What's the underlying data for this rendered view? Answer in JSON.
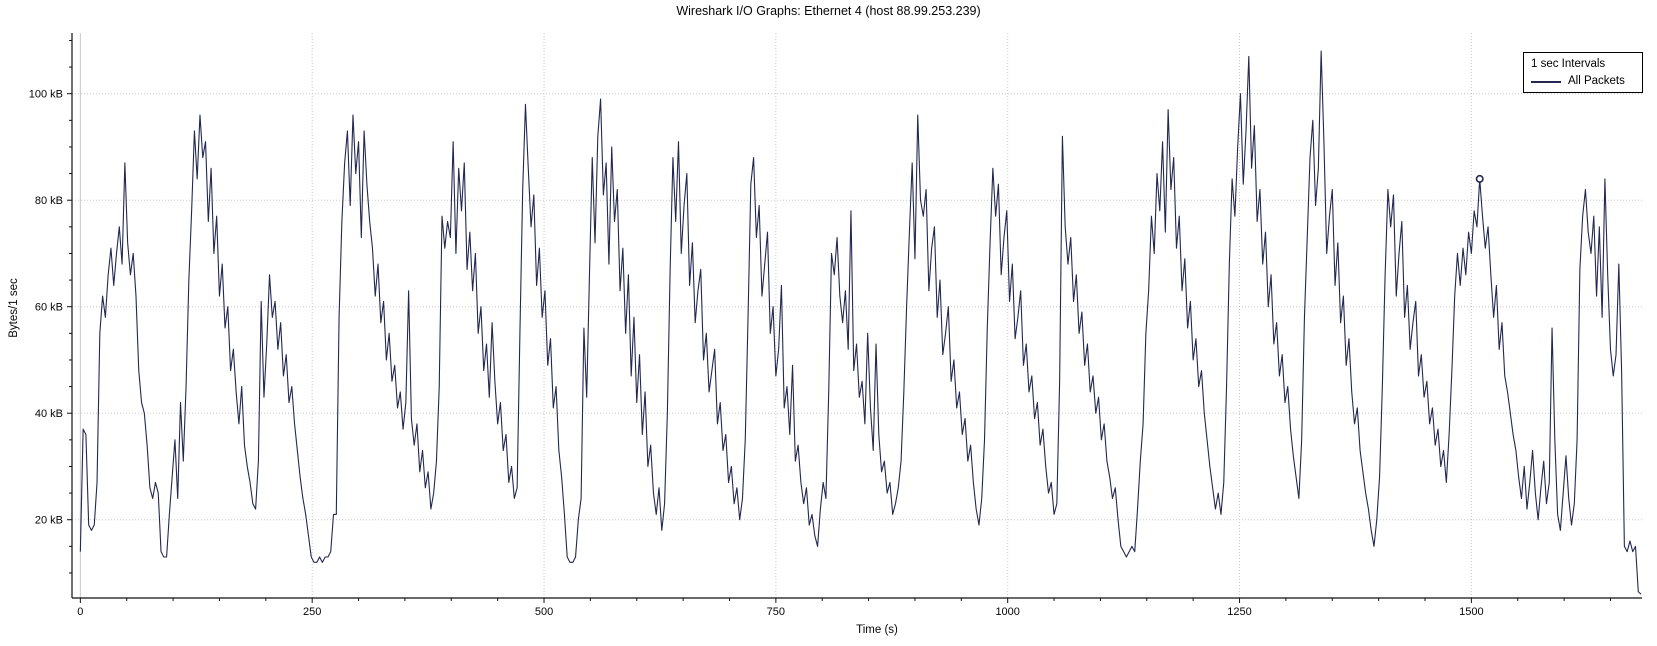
{
  "chart": {
    "title": "Wireshark I/O Graphs: Ethernet 4 (host 88.99.253.239)",
    "xlabel": "Time (s)",
    "ylabel": "Bytes/1 sec"
  },
  "legend": {
    "title": "1 sec Intervals",
    "items": [
      {
        "label": "All Packets",
        "color": "#232850"
      }
    ]
  },
  "colors": {
    "line": "#232850",
    "grid": "#c8c8c8",
    "zero_line": "#c8c8c8",
    "axis": "#111111",
    "text": "#060606",
    "background": "#ffffff",
    "marker_fill": "#ffffff"
  },
  "chart_data": {
    "type": "line",
    "title": "Wireshark I/O Graphs: Ethernet 4 (host 88.99.253.239)",
    "xlabel": "Time (s)",
    "ylabel": "Bytes/1 sec",
    "y_unit": "kB",
    "interval_label": "1 sec Intervals",
    "legend_position": "top-right",
    "grid": "dotted gridlines at major ticks; solid light-gray vertical line at t=0",
    "xlim": [
      -9,
      1684
    ],
    "ylim": [
      5.3,
      111.4
    ],
    "x_ticks": {
      "major": [
        0,
        250,
        500,
        750,
        1000,
        1250,
        1500
      ],
      "labels": [
        "0",
        "250",
        "500",
        "750",
        "1000",
        "1250",
        "1500"
      ],
      "minor_step": 50
    },
    "y_ticks": {
      "major": [
        20,
        40,
        60,
        80,
        100
      ],
      "labels": [
        "20 kB",
        "40 kB",
        "60 kB",
        "80 kB",
        "100 kB"
      ],
      "minor_step": 5
    },
    "hover_marker": {
      "t": 1509,
      "value_kB": 84
    },
    "series": [
      {
        "name": "All Packets",
        "t_start": 0,
        "t_step": 3,
        "values_kB": [
          14,
          37,
          36,
          19,
          18,
          19,
          27,
          55,
          62,
          58,
          66,
          71,
          64,
          70,
          75,
          68,
          87,
          72,
          66,
          70,
          62,
          48,
          42,
          40,
          34,
          26,
          24,
          27,
          25,
          14,
          13,
          13,
          21,
          28,
          35,
          24,
          42,
          31,
          45,
          65,
          78,
          93,
          84,
          96,
          88,
          91,
          76,
          86,
          70,
          77,
          62,
          68,
          56,
          60,
          48,
          52,
          44,
          38,
          45,
          34,
          30,
          27,
          23,
          22,
          31,
          61,
          43,
          53,
          66,
          58,
          61,
          52,
          57,
          47,
          51,
          42,
          45,
          38,
          33,
          28,
          24,
          21,
          17,
          13,
          12,
          12,
          13,
          12,
          13,
          13,
          14,
          21,
          21,
          58,
          76,
          87,
          93,
          79,
          96,
          85,
          91,
          73,
          93,
          83,
          76,
          71,
          62,
          68,
          57,
          61,
          50,
          55,
          46,
          49,
          41,
          44,
          37,
          42,
          63,
          39,
          34,
          38,
          29,
          33,
          26,
          29,
          22,
          25,
          31,
          45,
          77,
          71,
          76,
          73,
          91,
          70,
          86,
          78,
          87,
          67,
          74,
          63,
          70,
          55,
          60,
          48,
          53,
          43,
          57,
          46,
          38,
          42,
          33,
          36,
          27,
          30,
          24,
          26,
          55,
          82,
          98,
          86,
          75,
          81,
          64,
          71,
          58,
          63,
          49,
          54,
          41,
          45,
          33,
          28,
          21,
          13,
          12,
          12,
          13,
          20,
          24,
          56,
          43,
          66,
          88,
          72,
          92,
          99,
          81,
          87,
          68,
          90,
          76,
          82,
          63,
          71,
          55,
          66,
          47,
          58,
          42,
          51,
          36,
          44,
          30,
          34,
          25,
          21,
          26,
          18,
          23,
          40,
          67,
          88,
          76,
          91,
          70,
          79,
          85,
          64,
          72,
          57,
          63,
          67,
          50,
          55,
          44,
          48,
          52,
          38,
          42,
          33,
          36,
          27,
          30,
          23,
          26,
          20,
          24,
          35,
          58,
          83,
          88,
          73,
          79,
          62,
          68,
          74,
          55,
          60,
          47,
          52,
          64,
          41,
          45,
          36,
          49,
          31,
          34,
          27,
          23,
          26,
          19,
          21,
          17,
          15,
          22,
          27,
          24,
          44,
          70,
          66,
          73,
          62,
          57,
          63,
          52,
          78,
          48,
          53,
          43,
          46,
          38,
          55,
          41,
          33,
          53,
          36,
          29,
          31,
          25,
          27,
          21,
          23,
          26,
          31,
          44,
          60,
          74,
          87,
          69,
          96,
          80,
          77,
          82,
          63,
          71,
          75,
          58,
          65,
          51,
          55,
          60,
          46,
          50,
          41,
          44,
          36,
          39,
          31,
          34,
          27,
          22,
          19,
          24,
          35,
          56,
          72,
          86,
          77,
          83,
          66,
          73,
          78,
          61,
          68,
          54,
          58,
          63,
          49,
          53,
          44,
          47,
          39,
          42,
          34,
          37,
          30,
          25,
          27,
          21,
          23,
          46,
          92,
          75,
          68,
          73,
          61,
          66,
          55,
          59,
          49,
          53,
          44,
          47,
          40,
          43,
          35,
          38,
          31,
          28,
          24,
          26,
          20,
          15,
          14,
          13,
          14,
          15,
          14,
          22,
          31,
          38,
          55,
          63,
          77,
          70,
          85,
          78,
          91,
          74,
          97,
          82,
          88,
          71,
          77,
          63,
          69,
          56,
          61,
          50,
          54,
          45,
          48,
          40,
          35,
          30,
          26,
          22,
          25,
          21,
          27,
          45,
          68,
          84,
          77,
          90,
          100,
          83,
          93,
          107,
          86,
          94,
          76,
          82,
          68,
          74,
          60,
          66,
          53,
          57,
          47,
          51,
          42,
          45,
          37,
          32,
          28,
          24,
          35,
          58,
          73,
          88,
          95,
          79,
          86,
          108,
          91,
          70,
          77,
          82,
          64,
          72,
          57,
          62,
          49,
          54,
          44,
          38,
          41,
          33,
          29,
          25,
          22,
          18,
          15,
          20,
          28,
          45,
          66,
          82,
          75,
          81,
          62,
          70,
          76,
          58,
          64,
          52,
          57,
          61,
          47,
          51,
          43,
          46,
          38,
          41,
          34,
          37,
          30,
          33,
          27,
          36,
          48,
          62,
          70,
          64,
          71,
          66,
          74,
          70,
          78,
          75,
          84,
          77,
          71,
          75,
          66,
          58,
          64,
          52,
          57,
          47,
          44,
          40,
          36,
          33,
          28,
          24,
          30,
          22,
          27,
          33,
          25,
          20,
          26,
          31,
          23,
          27,
          56,
          35,
          21,
          18,
          25,
          32,
          24,
          19,
          23,
          35,
          67,
          77,
          82,
          74,
          70,
          77,
          62,
          75,
          58,
          84,
          66,
          52,
          47,
          51,
          68,
          48,
          15,
          14,
          16,
          14,
          15,
          6.5,
          6
        ]
      }
    ]
  }
}
